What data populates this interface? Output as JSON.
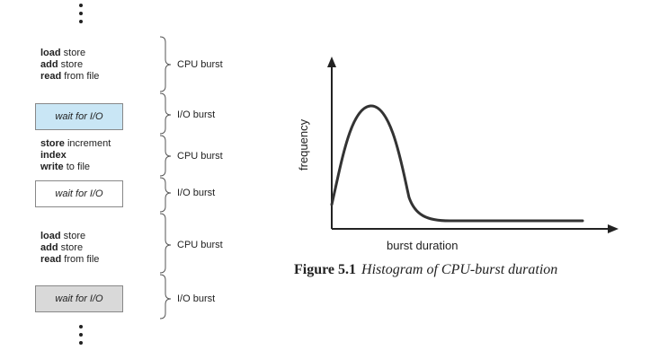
{
  "colors": {
    "io_box_1": "#c9e6f5",
    "io_box_2": "#ffffff",
    "io_box_3": "#d9d9d9"
  },
  "timeline": {
    "blocks": [
      {
        "lines": [
          {
            "kw": "load",
            "rest": " store"
          },
          {
            "kw": "add",
            "rest": " store"
          },
          {
            "kw": "read",
            "rest": " from file"
          }
        ],
        "burst": "CPU burst"
      },
      {
        "io": "wait for I/O",
        "burst": "I/O burst"
      },
      {
        "lines": [
          {
            "kw": "store",
            "rest": " increment"
          },
          {
            "kw": "index",
            "rest": ""
          },
          {
            "kw": "write",
            "rest": " to file"
          }
        ],
        "burst": "CPU burst"
      },
      {
        "io": "wait for I/O",
        "burst": "I/O burst"
      },
      {
        "lines": [
          {
            "kw": "load",
            "rest": " store"
          },
          {
            "kw": "add",
            "rest": " store"
          },
          {
            "kw": "read",
            "rest": " from file"
          }
        ],
        "burst": "CPU burst"
      },
      {
        "io": "wait for I/O",
        "burst": "I/O burst"
      }
    ]
  },
  "histogram": {
    "ylabel": "frequency",
    "xlabel": "burst duration"
  },
  "caption": {
    "number": "Figure 5.1",
    "text": "Histogram of CPU-burst duration"
  }
}
